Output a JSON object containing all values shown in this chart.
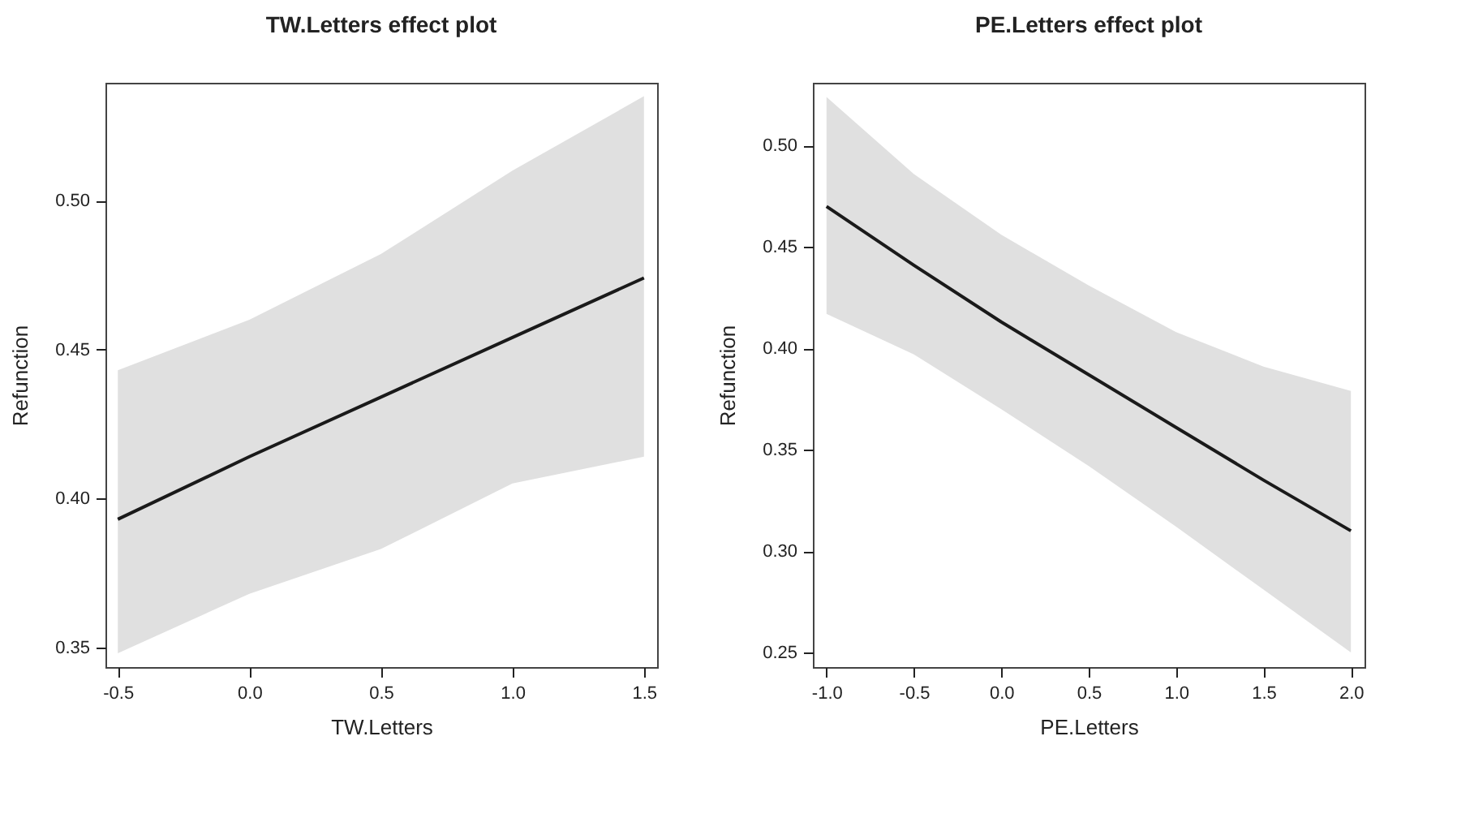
{
  "chart_data": [
    {
      "type": "line",
      "title": "TW.Letters effect plot",
      "xlabel": "TW.Letters",
      "ylabel": "Refunction",
      "x": [
        -0.5,
        0,
        0.5,
        1.0,
        1.5
      ],
      "series": [
        {
          "color": "#1a1a1a",
          "values": [
            0.393,
            0.414,
            0.434,
            0.454,
            0.474
          ],
          "lower": [
            0.348,
            0.368,
            0.383,
            0.405,
            0.414
          ],
          "upper": [
            0.443,
            0.46,
            0.482,
            0.51,
            0.535
          ]
        }
      ],
      "xlim": [
        -0.547,
        1.55
      ],
      "ylim": [
        0.3434,
        0.5395
      ],
      "xticks": [
        {
          "value": -0.5,
          "label": "-0.5"
        },
        {
          "value": 0,
          "label": "0.0"
        },
        {
          "value": 0.5,
          "label": "0.5"
        },
        {
          "value": 1,
          "label": "1.0"
        },
        {
          "value": 1.5,
          "label": "1.5"
        }
      ],
      "yticks": [
        {
          "value": 0.35,
          "label": "0.35"
        },
        {
          "value": 0.4,
          "label": "0.40"
        },
        {
          "value": 0.45,
          "label": "0.45"
        },
        {
          "value": 0.5,
          "label": "0.50"
        }
      ],
      "grid": false,
      "marker": "none",
      "line_style": "solid"
    },
    {
      "type": "line",
      "title": "PE.Letters effect plot",
      "xlabel": "PE.Letters",
      "ylabel": "Refunction",
      "x": [
        -1.0,
        -0.5,
        0,
        0.5,
        1.0,
        1.5,
        2.0
      ],
      "series": [
        {
          "color": "#1a1a1a",
          "values": [
            0.47,
            0.441,
            0.413,
            0.387,
            0.361,
            0.335,
            0.31
          ],
          "lower": [
            0.417,
            0.397,
            0.37,
            0.342,
            0.312,
            0.281,
            0.25
          ],
          "upper": [
            0.524,
            0.486,
            0.456,
            0.431,
            0.408,
            0.391,
            0.379
          ]
        }
      ],
      "xlim": [
        -1.078,
        2.078
      ],
      "ylim": [
        0.2428,
        0.531
      ],
      "xticks": [
        {
          "value": -1,
          "label": "-1.0"
        },
        {
          "value": -0.5,
          "label": "-0.5"
        },
        {
          "value": 0,
          "label": "0.0"
        },
        {
          "value": 0.5,
          "label": "0.5"
        },
        {
          "value": 1,
          "label": "1.0"
        },
        {
          "value": 1.5,
          "label": "1.5"
        },
        {
          "value": 2,
          "label": "2.0"
        }
      ],
      "yticks": [
        {
          "value": 0.25,
          "label": "0.25"
        },
        {
          "value": 0.3,
          "label": "0.30"
        },
        {
          "value": 0.35,
          "label": "0.35"
        },
        {
          "value": 0.4,
          "label": "0.40"
        },
        {
          "value": 0.45,
          "label": "0.45"
        },
        {
          "value": 0.5,
          "label": "0.50"
        }
      ],
      "grid": false,
      "marker": "none",
      "line_style": "solid"
    }
  ]
}
